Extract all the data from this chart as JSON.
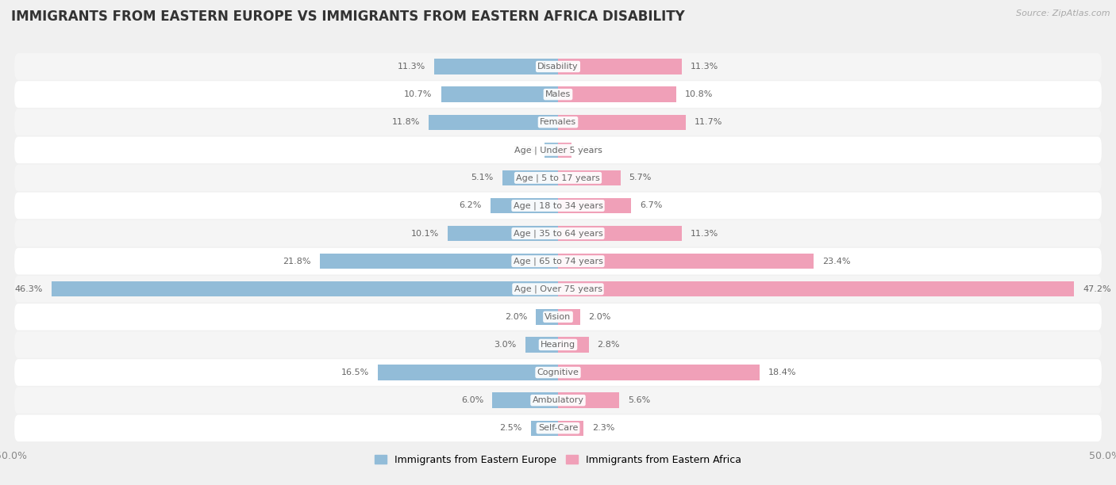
{
  "title": "IMMIGRANTS FROM EASTERN EUROPE VS IMMIGRANTS FROM EASTERN AFRICA DISABILITY",
  "source": "Source: ZipAtlas.com",
  "categories": [
    "Disability",
    "Males",
    "Females",
    "Age | Under 5 years",
    "Age | 5 to 17 years",
    "Age | 18 to 34 years",
    "Age | 35 to 64 years",
    "Age | 65 to 74 years",
    "Age | Over 75 years",
    "Vision",
    "Hearing",
    "Cognitive",
    "Ambulatory",
    "Self-Care"
  ],
  "left_values": [
    11.3,
    10.7,
    11.8,
    1.2,
    5.1,
    6.2,
    10.1,
    21.8,
    46.3,
    2.0,
    3.0,
    16.5,
    6.0,
    2.5
  ],
  "right_values": [
    11.3,
    10.8,
    11.7,
    1.2,
    5.7,
    6.7,
    11.3,
    23.4,
    47.2,
    2.0,
    2.8,
    18.4,
    5.6,
    2.3
  ],
  "left_color": "#92bcd8",
  "right_color": "#f0a0b8",
  "left_label": "Immigrants from Eastern Europe",
  "right_label": "Immigrants from Eastern Africa",
  "axis_limit": 50.0,
  "background_color": "#f0f0f0",
  "row_colors": [
    "#f5f5f5",
    "#ffffff"
  ],
  "title_fontsize": 12,
  "bar_height": 0.55
}
